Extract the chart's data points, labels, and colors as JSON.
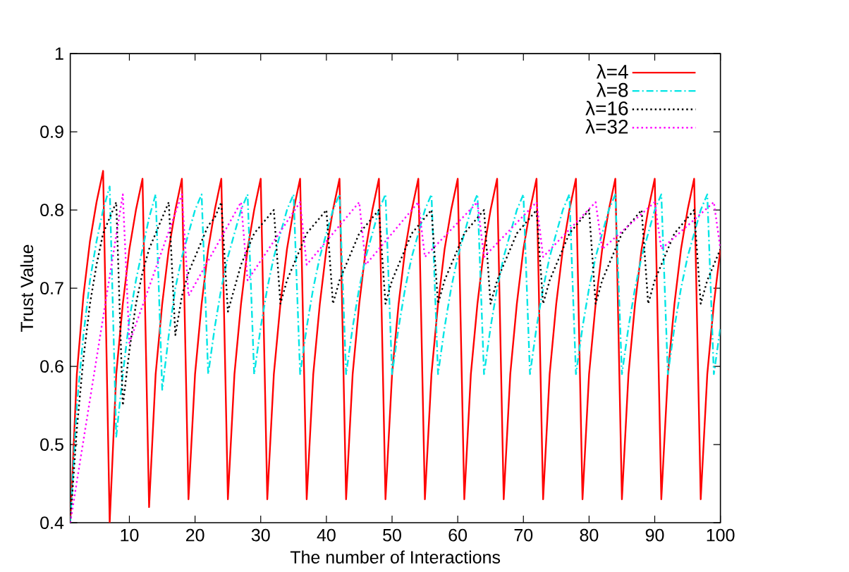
{
  "chart_data": {
    "type": "line",
    "xlabel": "The number of Interactions",
    "ylabel": "Trust Value",
    "x": [
      1,
      2,
      3,
      4,
      5,
      6,
      7,
      8,
      9,
      10,
      11,
      12,
      13,
      14,
      15,
      16,
      17,
      18,
      19,
      20,
      21,
      22,
      23,
      24,
      25,
      26,
      27,
      28,
      29,
      30,
      31,
      32,
      33,
      34,
      35,
      36,
      37,
      38,
      39,
      40,
      41,
      42,
      43,
      44,
      45,
      46,
      47,
      48,
      49,
      50,
      51,
      52,
      53,
      54,
      55,
      56,
      57,
      58,
      59,
      60,
      61,
      62,
      63,
      64,
      65,
      66,
      67,
      68,
      69,
      70,
      71,
      72,
      73,
      74,
      75,
      76,
      77,
      78,
      79,
      80,
      81,
      82,
      83,
      84,
      85,
      86,
      87,
      88,
      89,
      90,
      91,
      92,
      93,
      94,
      95,
      96,
      97,
      98,
      99,
      100
    ],
    "xlim": [
      1,
      100
    ],
    "ylim": [
      0.4,
      1
    ],
    "xticks": [
      10,
      20,
      30,
      40,
      50,
      60,
      70,
      80,
      90,
      100
    ],
    "yticks": [
      0.4,
      0.5,
      0.6,
      0.7,
      0.8,
      0.9,
      1
    ],
    "legend": "top right",
    "marker": "none",
    "series": [
      {
        "name": "λ=4",
        "color": "#ff0000",
        "line_style": "solid",
        "values": [
          0.4,
          0.59,
          0.69,
          0.76,
          0.81,
          0.85,
          0.4,
          0.59,
          0.68,
          0.75,
          0.8,
          0.84,
          0.42,
          0.59,
          0.68,
          0.75,
          0.8,
          0.84,
          0.43,
          0.59,
          0.68,
          0.75,
          0.8,
          0.84,
          0.43,
          0.59,
          0.68,
          0.75,
          0.8,
          0.84,
          0.43,
          0.59,
          0.68,
          0.75,
          0.8,
          0.84,
          0.43,
          0.59,
          0.68,
          0.75,
          0.8,
          0.84,
          0.43,
          0.59,
          0.68,
          0.75,
          0.8,
          0.84,
          0.43,
          0.59,
          0.68,
          0.75,
          0.8,
          0.84,
          0.43,
          0.59,
          0.68,
          0.75,
          0.8,
          0.84,
          0.43,
          0.59,
          0.68,
          0.75,
          0.8,
          0.84,
          0.43,
          0.59,
          0.68,
          0.75,
          0.8,
          0.84,
          0.43,
          0.59,
          0.68,
          0.75,
          0.8,
          0.84,
          0.43,
          0.59,
          0.68,
          0.75,
          0.8,
          0.84,
          0.43,
          0.59,
          0.68,
          0.75,
          0.8,
          0.84,
          0.43,
          0.59,
          0.68,
          0.75,
          0.8,
          0.84,
          0.43,
          0.59,
          0.68,
          0.75
        ]
      },
      {
        "name": "λ=8",
        "color": "#00e5e5",
        "line_style": "dashed",
        "values": [
          0.4,
          0.55,
          0.64,
          0.71,
          0.76,
          0.8,
          0.83,
          0.51,
          0.59,
          0.66,
          0.71,
          0.75,
          0.79,
          0.82,
          0.57,
          0.64,
          0.7,
          0.74,
          0.77,
          0.8,
          0.82,
          0.59,
          0.65,
          0.7,
          0.74,
          0.77,
          0.8,
          0.82,
          0.59,
          0.65,
          0.7,
          0.74,
          0.77,
          0.8,
          0.82,
          0.59,
          0.65,
          0.7,
          0.74,
          0.77,
          0.8,
          0.82,
          0.59,
          0.65,
          0.7,
          0.74,
          0.77,
          0.8,
          0.82,
          0.59,
          0.65,
          0.7,
          0.74,
          0.77,
          0.8,
          0.82,
          0.59,
          0.65,
          0.7,
          0.74,
          0.77,
          0.8,
          0.82,
          0.59,
          0.65,
          0.7,
          0.74,
          0.77,
          0.8,
          0.82,
          0.59,
          0.65,
          0.7,
          0.74,
          0.77,
          0.8,
          0.82,
          0.59,
          0.65,
          0.7,
          0.74,
          0.77,
          0.8,
          0.82,
          0.59,
          0.65,
          0.7,
          0.74,
          0.77,
          0.8,
          0.82,
          0.59,
          0.65,
          0.7,
          0.74,
          0.77,
          0.8,
          0.82,
          0.59,
          0.65
        ]
      },
      {
        "name": "λ=16",
        "color": "#000000",
        "line_style": "dotted",
        "values": [
          0.4,
          0.52,
          0.61,
          0.68,
          0.73,
          0.77,
          0.79,
          0.81,
          0.55,
          0.62,
          0.68,
          0.72,
          0.75,
          0.77,
          0.79,
          0.81,
          0.64,
          0.69,
          0.72,
          0.74,
          0.76,
          0.78,
          0.79,
          0.81,
          0.67,
          0.7,
          0.73,
          0.75,
          0.77,
          0.78,
          0.79,
          0.8,
          0.68,
          0.71,
          0.73,
          0.75,
          0.77,
          0.78,
          0.79,
          0.8,
          0.68,
          0.71,
          0.73,
          0.75,
          0.77,
          0.78,
          0.79,
          0.8,
          0.68,
          0.71,
          0.73,
          0.75,
          0.77,
          0.78,
          0.79,
          0.8,
          0.68,
          0.71,
          0.73,
          0.75,
          0.77,
          0.78,
          0.79,
          0.8,
          0.68,
          0.71,
          0.73,
          0.75,
          0.77,
          0.78,
          0.79,
          0.8,
          0.68,
          0.71,
          0.73,
          0.75,
          0.77,
          0.78,
          0.79,
          0.8,
          0.68,
          0.71,
          0.73,
          0.75,
          0.77,
          0.78,
          0.79,
          0.8,
          0.68,
          0.71,
          0.73,
          0.75,
          0.77,
          0.78,
          0.79,
          0.8,
          0.68,
          0.71,
          0.73,
          0.75
        ]
      },
      {
        "name": "λ=32",
        "color": "#ff00ff",
        "line_style": "dotted",
        "x": [
          1,
          9,
          10,
          18,
          19,
          27,
          28,
          36,
          37,
          45,
          46,
          54,
          55,
          63,
          64,
          72,
          73,
          81,
          82,
          90,
          91,
          99,
          100
        ],
        "values": [
          0.4,
          0.82,
          0.63,
          0.82,
          0.69,
          0.81,
          0.71,
          0.81,
          0.73,
          0.81,
          0.73,
          0.81,
          0.74,
          0.81,
          0.74,
          0.81,
          0.74,
          0.81,
          0.75,
          0.81,
          0.75,
          0.81,
          0.75
        ]
      }
    ]
  }
}
